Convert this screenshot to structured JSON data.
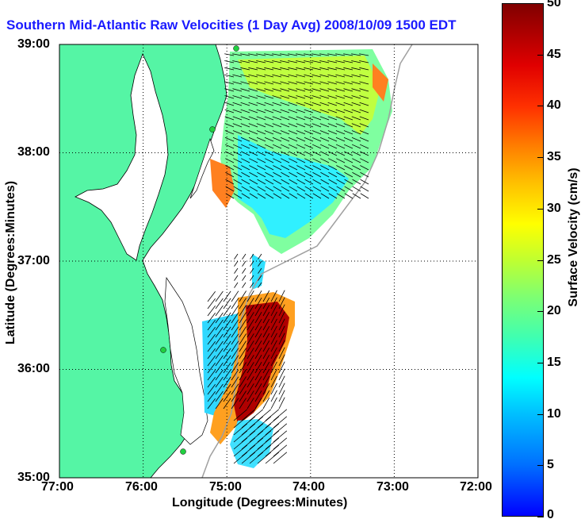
{
  "title": "Southern Mid-Atlantic Raw Velocities (1 Day Avg) 2008/10/09 1500 EDT",
  "xlabel": "Longitude (Degrees:Minutes)",
  "ylabel": "Latitude (Degrees:Minutes)",
  "colorbar_label": "Surface Velocity (cm/s)",
  "x_ticks": [
    "77:00",
    "76:00",
    "75:00",
    "74:00",
    "73:00",
    "72:00"
  ],
  "y_ticks": [
    "39:00",
    "38:00",
    "37:00",
    "36:00",
    "35:00"
  ],
  "colorbar_ticks": [
    "50",
    "45",
    "40",
    "35",
    "30",
    "25",
    "20",
    "15",
    "10",
    "5",
    "0"
  ],
  "map": {
    "lon_range": [
      -77,
      -72
    ],
    "lat_range": [
      35,
      39
    ],
    "land_color": "#55f5a5",
    "coast_color": "#000000",
    "isobath_color": "#a0a0a0",
    "grid": "dotted",
    "station_color": "#20d040",
    "colormap": "jet",
    "vector_color": "#000000"
  },
  "chart_data": {
    "type": "heatmap",
    "title": "Southern Mid-Atlantic Raw Velocities (1 Day Avg) 2008/10/09 1500 EDT",
    "xlabel": "Longitude (Degrees:Minutes)",
    "ylabel": "Latitude (Degrees:Minutes)",
    "xlim": [
      -77,
      -72
    ],
    "ylim": [
      35,
      39
    ],
    "clim": [
      0,
      50
    ],
    "colorbar_label": "Surface Velocity (cm/s)"
  }
}
